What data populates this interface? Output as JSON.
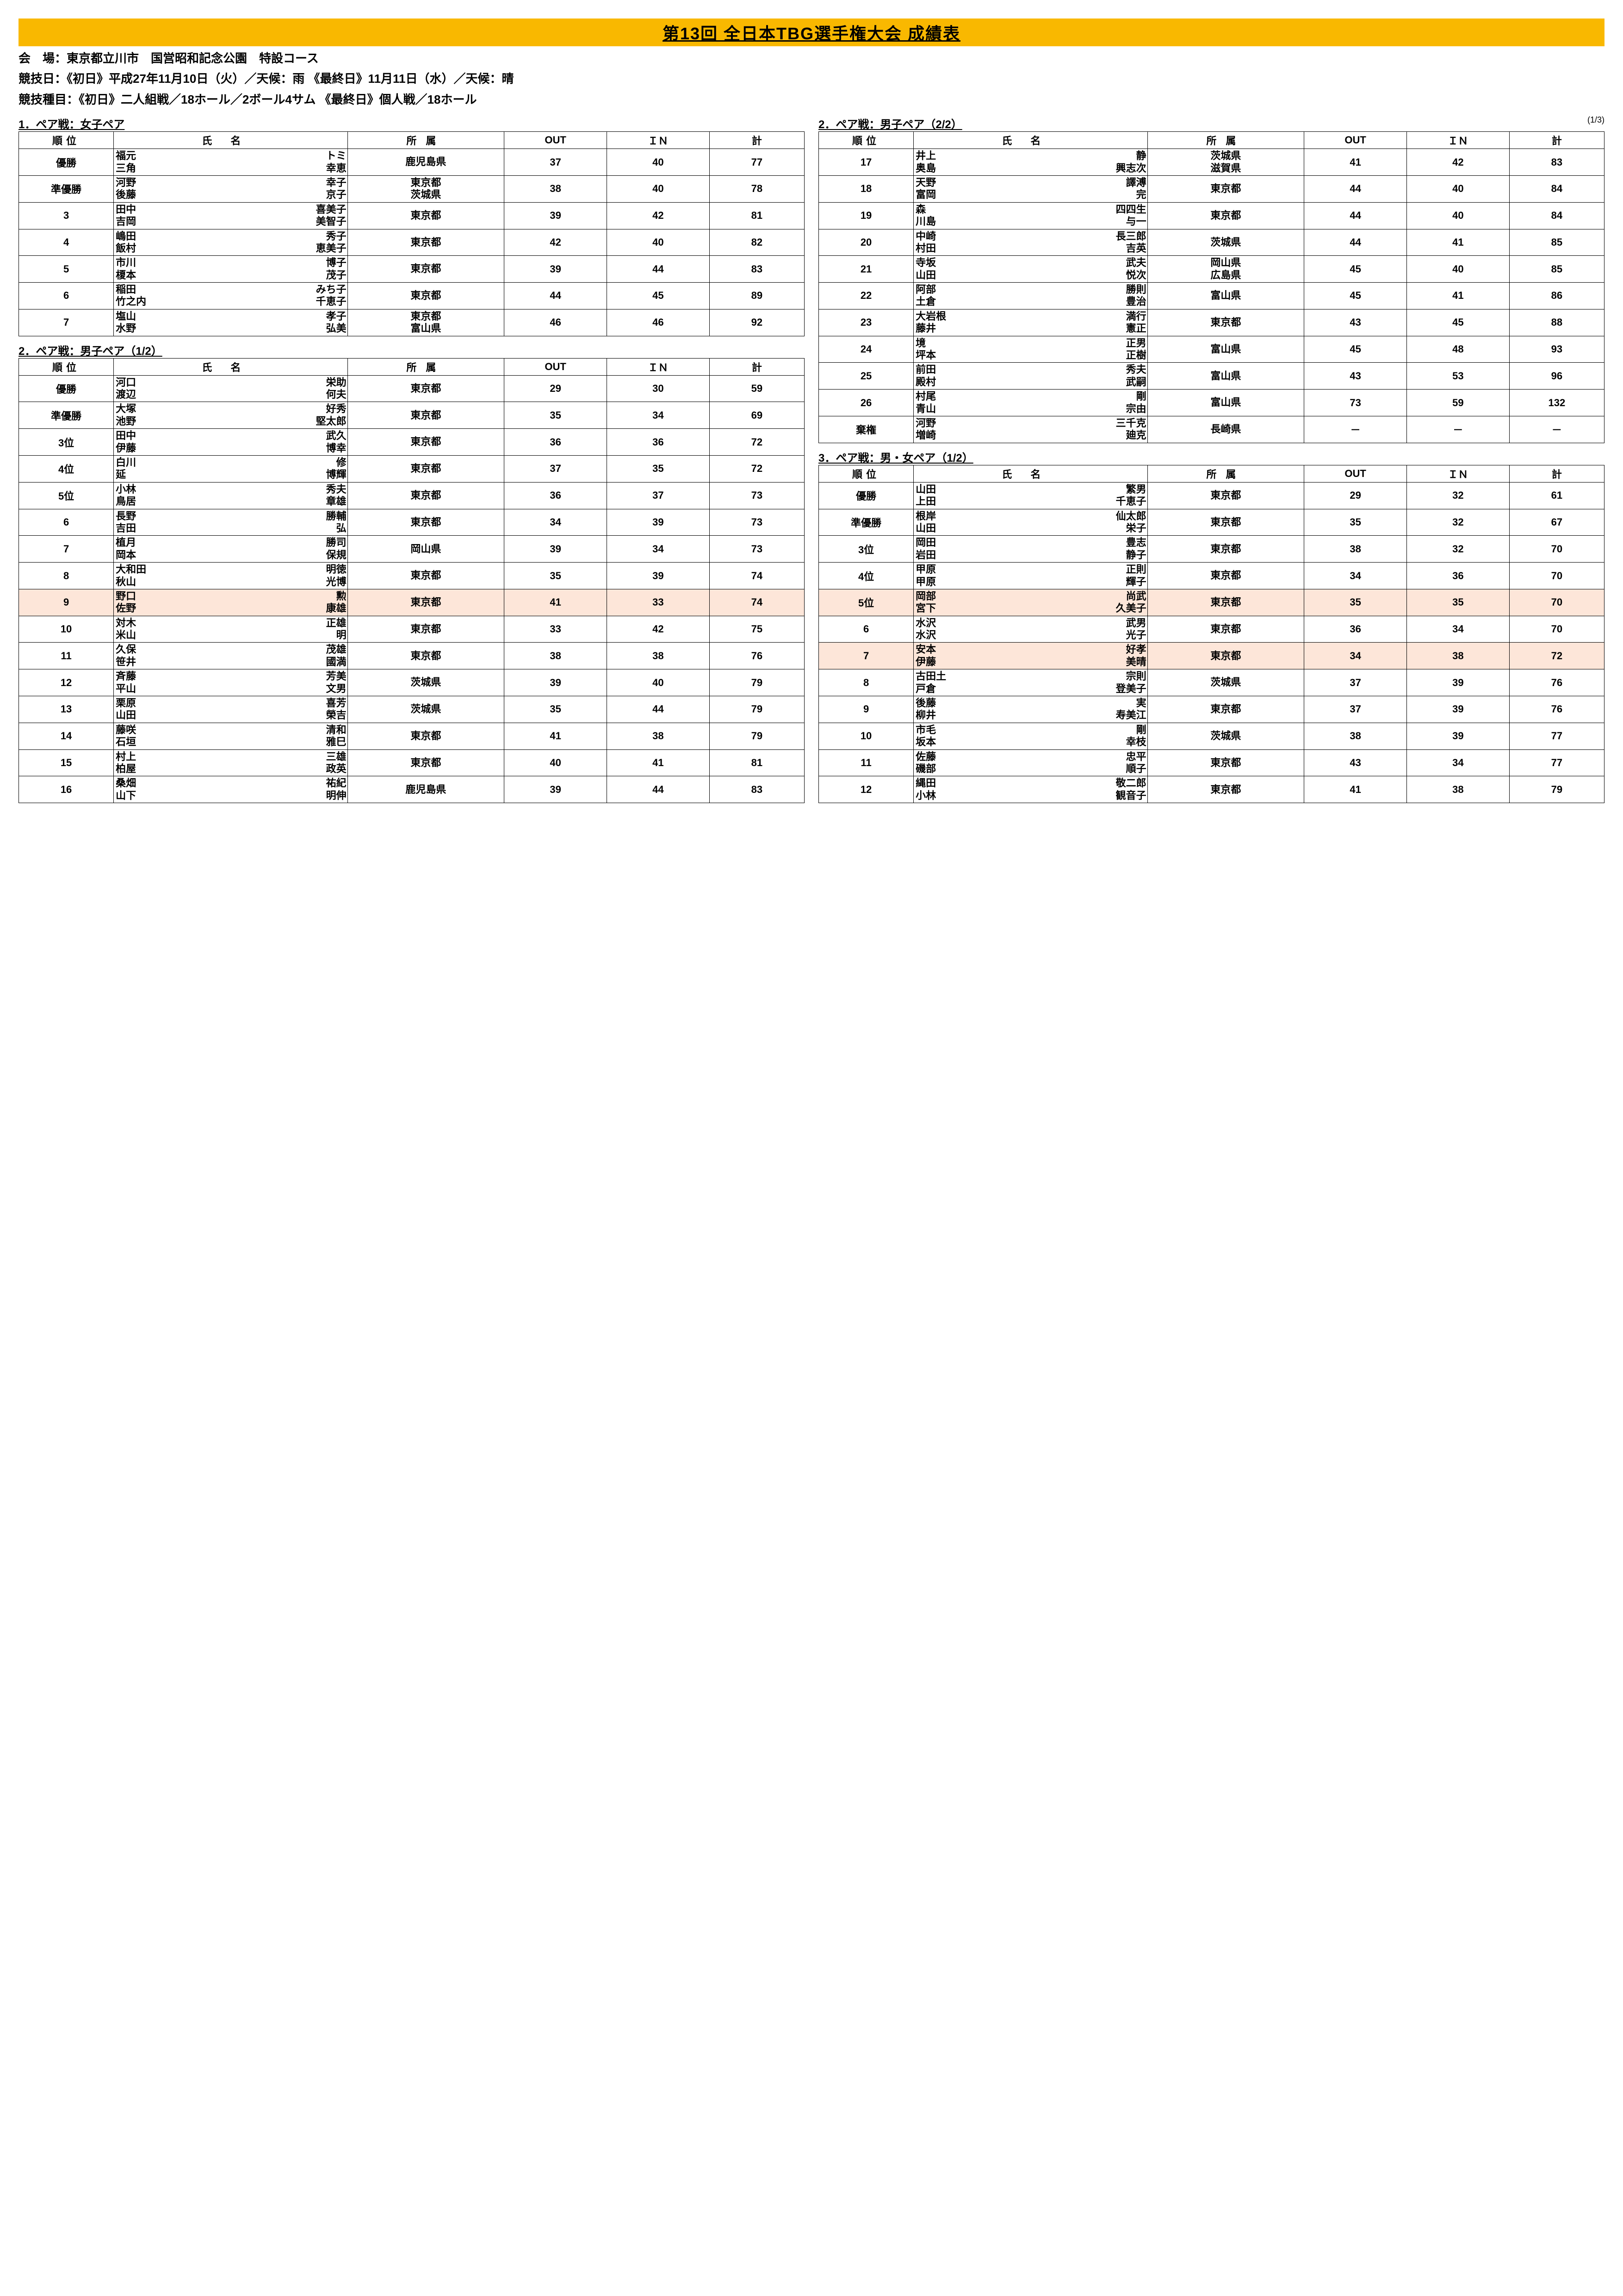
{
  "title": "第13回 全日本TBG選手権大会 成績表",
  "meta": {
    "venue": "会　場：東京都立川市　国営昭和記念公園　特設コース",
    "date": "競技日：《初日》平成27年11月10日（火）／天候：雨 《最終日》11月11日（水）／天候：晴",
    "event": "競技種目：《初日》二人組戦／18ホール／2ボール4サム 《最終日》個人戦／18ホール"
  },
  "page_indicator": "(1/3)",
  "headers": {
    "rank": "順位",
    "name": "氏名",
    "aff": "所属",
    "out": "OUT",
    "in": "ＩＮ",
    "total": "計"
  },
  "sections": {
    "womens": {
      "label": "1．ペア戦：女子ペア",
      "rows": [
        {
          "rank": "優勝",
          "n1s": "福元",
          "n1g": "トミ",
          "n2s": "三角",
          "n2g": "幸恵",
          "aff": "鹿児島県",
          "out": "37",
          "in": "40",
          "tot": "77"
        },
        {
          "rank": "準優勝",
          "n1s": "河野",
          "n1g": "幸子",
          "n2s": "後藤",
          "n2g": "京子",
          "aff": "東京都\n茨城県",
          "out": "38",
          "in": "40",
          "tot": "78"
        },
        {
          "rank": "3",
          "n1s": "田中",
          "n1g": "喜美子",
          "n2s": "吉岡",
          "n2g": "美智子",
          "aff": "東京都",
          "out": "39",
          "in": "42",
          "tot": "81"
        },
        {
          "rank": "4",
          "n1s": "嶋田",
          "n1g": "秀子",
          "n2s": "飯村",
          "n2g": "恵美子",
          "aff": "東京都",
          "out": "42",
          "in": "40",
          "tot": "82"
        },
        {
          "rank": "5",
          "n1s": "市川",
          "n1g": "博子",
          "n2s": "榎本",
          "n2g": "茂子",
          "aff": "東京都",
          "out": "39",
          "in": "44",
          "tot": "83"
        },
        {
          "rank": "6",
          "n1s": "稲田",
          "n1g": "みち子",
          "n2s": "竹之内",
          "n2g": "千恵子",
          "aff": "東京都",
          "out": "44",
          "in": "45",
          "tot": "89"
        },
        {
          "rank": "7",
          "n1s": "塩山",
          "n1g": "孝子",
          "n2s": "水野",
          "n2g": "弘美",
          "aff": "東京都\n富山県",
          "out": "46",
          "in": "46",
          "tot": "92"
        }
      ]
    },
    "mens1": {
      "label": "2．ペア戦：男子ペア（1/2）",
      "rows": [
        {
          "rank": "優勝",
          "n1s": "河口",
          "n1g": "栄助",
          "n2s": "渡辺",
          "n2g": "何夫",
          "aff": "東京都",
          "out": "29",
          "in": "30",
          "tot": "59"
        },
        {
          "rank": "準優勝",
          "n1s": "大塚",
          "n1g": "好秀",
          "n2s": "池野",
          "n2g": "堅太郎",
          "aff": "東京都",
          "out": "35",
          "in": "34",
          "tot": "69"
        },
        {
          "rank": "3位",
          "n1s": "田中",
          "n1g": "武久",
          "n2s": "伊藤",
          "n2g": "博幸",
          "aff": "東京都",
          "out": "36",
          "in": "36",
          "tot": "72"
        },
        {
          "rank": "4位",
          "n1s": "白川",
          "n1g": "修",
          "n2s": "延",
          "n2g": "博輝",
          "aff": "東京都",
          "out": "37",
          "in": "35",
          "tot": "72"
        },
        {
          "rank": "5位",
          "n1s": "小林",
          "n1g": "秀夫",
          "n2s": "鳥居",
          "n2g": "章雄",
          "aff": "東京都",
          "out": "36",
          "in": "37",
          "tot": "73"
        },
        {
          "rank": "6",
          "n1s": "長野",
          "n1g": "勝輔",
          "n2s": "吉田",
          "n2g": "弘",
          "aff": "東京都",
          "out": "34",
          "in": "39",
          "tot": "73"
        },
        {
          "rank": "7",
          "n1s": "植月",
          "n1g": "勝司",
          "n2s": "岡本",
          "n2g": "保規",
          "aff": "岡山県",
          "out": "39",
          "in": "34",
          "tot": "73"
        },
        {
          "rank": "8",
          "n1s": "大和田",
          "n1g": "明徳",
          "n2s": "秋山",
          "n2g": "光博",
          "aff": "東京都",
          "out": "35",
          "in": "39",
          "tot": "74"
        },
        {
          "rank": "9",
          "n1s": "野口",
          "n1g": "勲",
          "n2s": "佐野",
          "n2g": "康雄",
          "aff": "東京都",
          "out": "41",
          "in": "33",
          "tot": "74",
          "hl": true
        },
        {
          "rank": "10",
          "n1s": "対木",
          "n1g": "正雄",
          "n2s": "米山",
          "n2g": "明",
          "aff": "東京都",
          "out": "33",
          "in": "42",
          "tot": "75"
        },
        {
          "rank": "11",
          "n1s": "久保",
          "n1g": "茂雄",
          "n2s": "笹井",
          "n2g": "國満",
          "aff": "東京都",
          "out": "38",
          "in": "38",
          "tot": "76"
        },
        {
          "rank": "12",
          "n1s": "斉藤",
          "n1g": "芳美",
          "n2s": "平山",
          "n2g": "文男",
          "aff": "茨城県",
          "out": "39",
          "in": "40",
          "tot": "79"
        },
        {
          "rank": "13",
          "n1s": "栗原",
          "n1g": "喜芳",
          "n2s": "山田",
          "n2g": "榮吉",
          "aff": "茨城県",
          "out": "35",
          "in": "44",
          "tot": "79"
        },
        {
          "rank": "14",
          "n1s": "藤咲",
          "n1g": "清和",
          "n2s": "石垣",
          "n2g": "雅巳",
          "aff": "東京都",
          "out": "41",
          "in": "38",
          "tot": "79"
        },
        {
          "rank": "15",
          "n1s": "村上",
          "n1g": "三雄",
          "n2s": "柏屋",
          "n2g": "政英",
          "aff": "東京都",
          "out": "40",
          "in": "41",
          "tot": "81"
        },
        {
          "rank": "16",
          "n1s": "桑畑",
          "n1g": "祐紀",
          "n2s": "山下",
          "n2g": "明伸",
          "aff": "鹿児島県",
          "out": "39",
          "in": "44",
          "tot": "83"
        }
      ]
    },
    "mens2": {
      "label": "2．ペア戦：男子ペア（2/2）",
      "rows": [
        {
          "rank": "17",
          "n1s": "井上",
          "n1g": "静",
          "n2s": "奥島",
          "n2g": "興志次",
          "aff": "茨城県\n滋賀県",
          "out": "41",
          "in": "42",
          "tot": "83"
        },
        {
          "rank": "18",
          "n1s": "天野",
          "n1g": "譯溥",
          "n2s": "富岡",
          "n2g": "完",
          "aff": "東京都",
          "out": "44",
          "in": "40",
          "tot": "84"
        },
        {
          "rank": "19",
          "n1s": "森",
          "n1g": "四四生",
          "n2s": "川島",
          "n2g": "与一",
          "aff": "東京都",
          "out": "44",
          "in": "40",
          "tot": "84"
        },
        {
          "rank": "20",
          "n1s": "中崎",
          "n1g": "長三郎",
          "n2s": "村田",
          "n2g": "吉英",
          "aff": "茨城県",
          "out": "44",
          "in": "41",
          "tot": "85"
        },
        {
          "rank": "21",
          "n1s": "寺坂",
          "n1g": "武夫",
          "n2s": "山田",
          "n2g": "悦次",
          "aff": "岡山県\n広島県",
          "out": "45",
          "in": "40",
          "tot": "85"
        },
        {
          "rank": "22",
          "n1s": "阿部",
          "n1g": "勝則",
          "n2s": "土倉",
          "n2g": "豊治",
          "aff": "富山県",
          "out": "45",
          "in": "41",
          "tot": "86"
        },
        {
          "rank": "23",
          "n1s": "大岩根",
          "n1g": "満行",
          "n2s": "藤井",
          "n2g": "憲正",
          "aff": "東京都",
          "out": "43",
          "in": "45",
          "tot": "88"
        },
        {
          "rank": "24",
          "n1s": "境",
          "n1g": "正男",
          "n2s": "坪本",
          "n2g": "正樹",
          "aff": "富山県",
          "out": "45",
          "in": "48",
          "tot": "93"
        },
        {
          "rank": "25",
          "n1s": "前田",
          "n1g": "秀夫",
          "n2s": "殿村",
          "n2g": "武嗣",
          "aff": "富山県",
          "out": "43",
          "in": "53",
          "tot": "96"
        },
        {
          "rank": "26",
          "n1s": "村尾",
          "n1g": "剛",
          "n2s": "青山",
          "n2g": "宗由",
          "aff": "富山県",
          "out": "73",
          "in": "59",
          "tot": "132"
        },
        {
          "rank": "棄権",
          "n1s": "河野",
          "n1g": "三千克",
          "n2s": "増崎",
          "n2g": "廸克",
          "aff": "長崎県",
          "out": "－",
          "in": "－",
          "tot": "－"
        }
      ]
    },
    "mixed": {
      "label": "3．ペア戦：男・女ペア（1/2）",
      "rows": [
        {
          "rank": "優勝",
          "n1s": "山田",
          "n1g": "繁男",
          "n2s": "上田",
          "n2g": "千恵子",
          "aff": "東京都",
          "out": "29",
          "in": "32",
          "tot": "61"
        },
        {
          "rank": "準優勝",
          "n1s": "根岸",
          "n1g": "仙太郎",
          "n2s": "山田",
          "n2g": "栄子",
          "aff": "東京都",
          "out": "35",
          "in": "32",
          "tot": "67"
        },
        {
          "rank": "3位",
          "n1s": "岡田",
          "n1g": "豊志",
          "n2s": "岩田",
          "n2g": "静子",
          "aff": "東京都",
          "out": "38",
          "in": "32",
          "tot": "70"
        },
        {
          "rank": "4位",
          "n1s": "甲原",
          "n1g": "正則",
          "n2s": "甲原",
          "n2g": "輝子",
          "aff": "東京都",
          "out": "34",
          "in": "36",
          "tot": "70"
        },
        {
          "rank": "5位",
          "n1s": "岡部",
          "n1g": "尚武",
          "n2s": "宮下",
          "n2g": "久美子",
          "aff": "東京都",
          "out": "35",
          "in": "35",
          "tot": "70",
          "hl": true
        },
        {
          "rank": "6",
          "n1s": "水沢",
          "n1g": "武男",
          "n2s": "水沢",
          "n2g": "光子",
          "aff": "東京都",
          "out": "36",
          "in": "34",
          "tot": "70"
        },
        {
          "rank": "7",
          "n1s": "安本",
          "n1g": "好孝",
          "n2s": "伊藤",
          "n2g": "美晴",
          "aff": "東京都",
          "out": "34",
          "in": "38",
          "tot": "72",
          "hl": true
        },
        {
          "rank": "8",
          "n1s": "古田土",
          "n1g": "宗則",
          "n2s": "戸倉",
          "n2g": "登美子",
          "aff": "茨城県",
          "out": "37",
          "in": "39",
          "tot": "76"
        },
        {
          "rank": "9",
          "n1s": "後藤",
          "n1g": "実",
          "n2s": "柳井",
          "n2g": "寿美江",
          "aff": "東京都",
          "out": "37",
          "in": "39",
          "tot": "76"
        },
        {
          "rank": "10",
          "n1s": "市毛",
          "n1g": "剛",
          "n2s": "坂本",
          "n2g": "幸枝",
          "aff": "茨城県",
          "out": "38",
          "in": "39",
          "tot": "77"
        },
        {
          "rank": "11",
          "n1s": "佐藤",
          "n1g": "忠平",
          "n2s": "磯部",
          "n2g": "順子",
          "aff": "東京都",
          "out": "43",
          "in": "34",
          "tot": "77"
        },
        {
          "rank": "12",
          "n1s": "縄田",
          "n1g": "敬二郎",
          "n2s": "小林",
          "n2g": "観音子",
          "aff": "東京都",
          "out": "41",
          "in": "38",
          "tot": "79"
        }
      ]
    }
  },
  "colors": {
    "title_bg": "#f9b800",
    "highlight": "#fde6d9"
  }
}
